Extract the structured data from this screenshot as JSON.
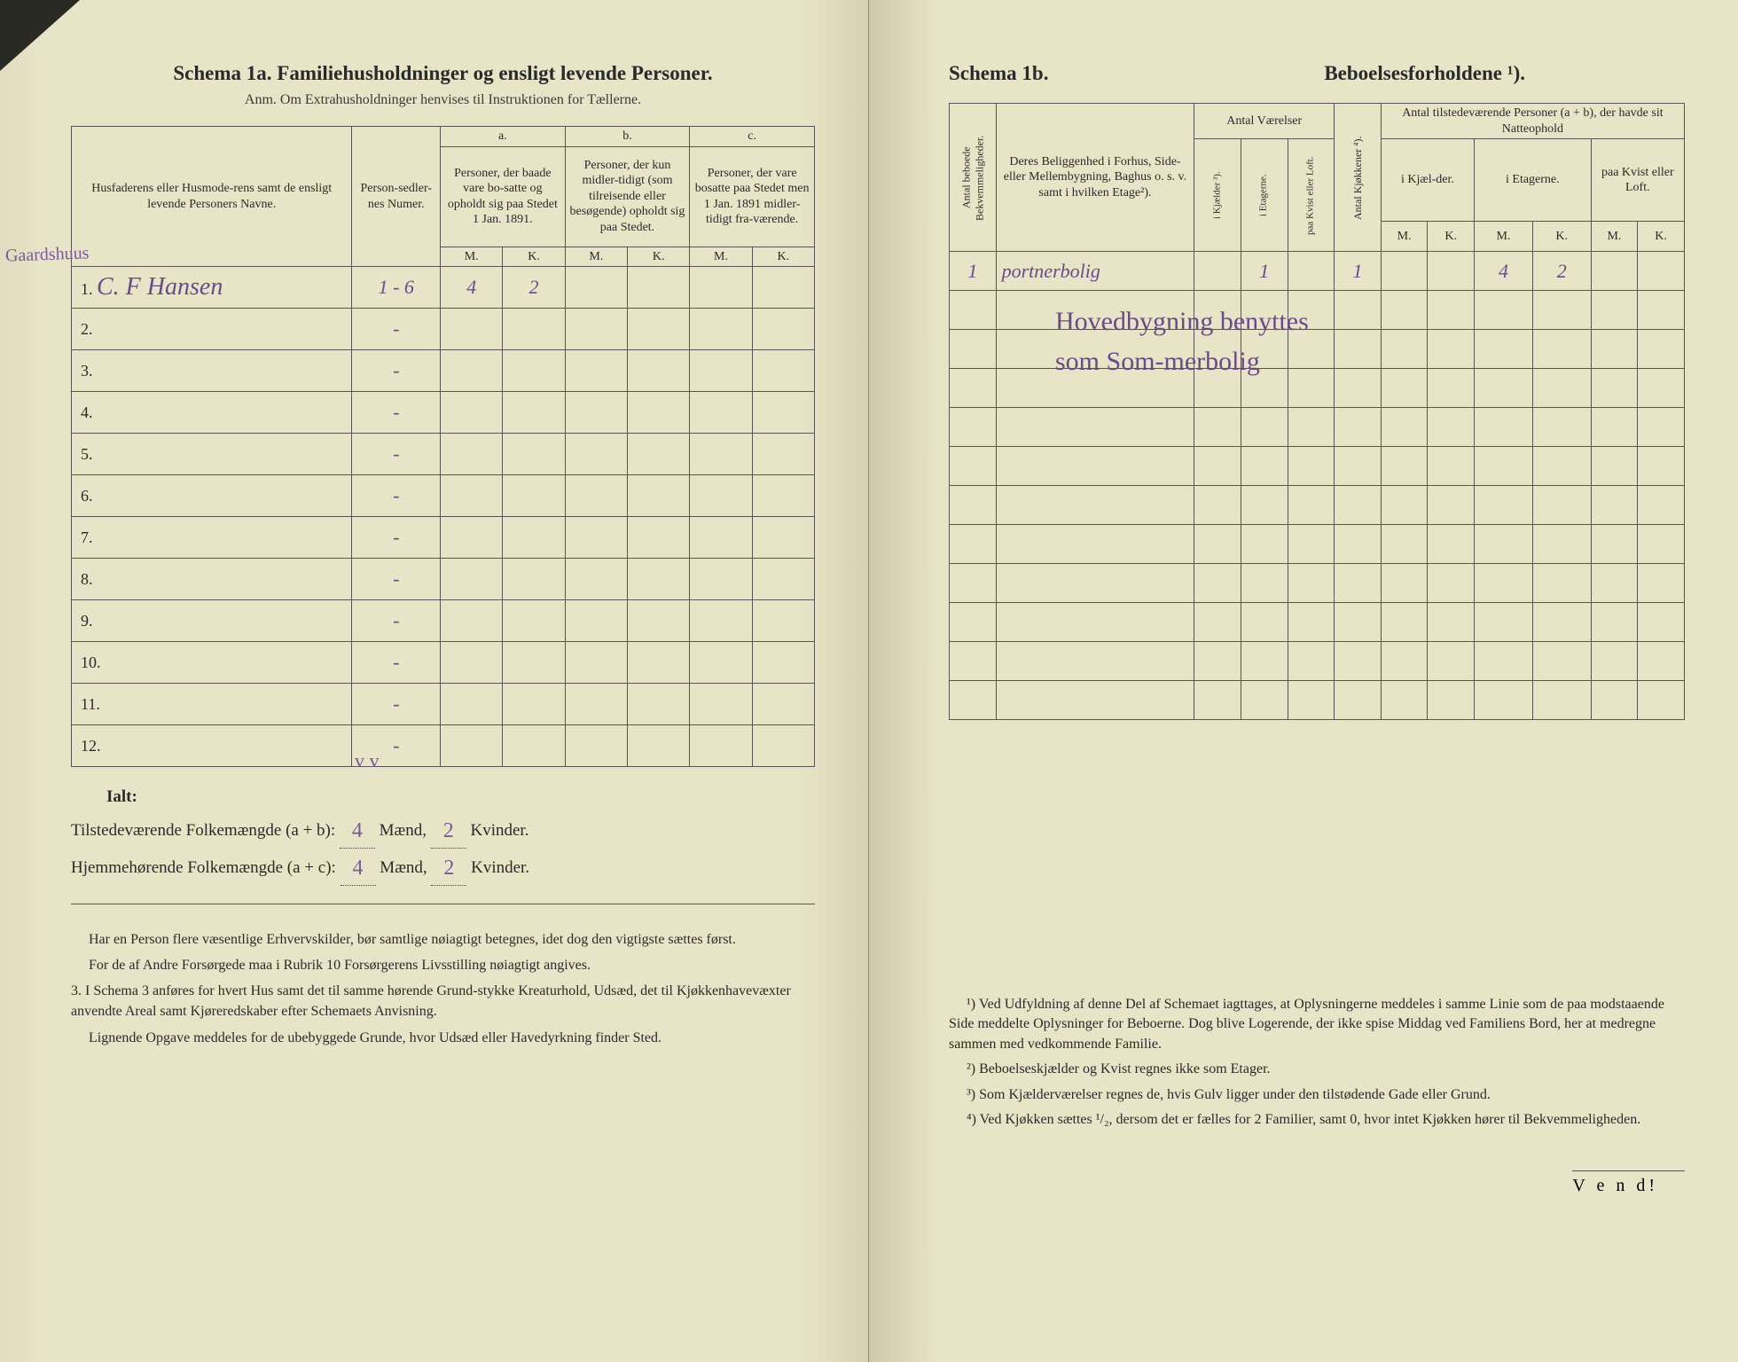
{
  "left": {
    "title": "Schema 1a.   Familiehusholdninger og ensligt levende Personer.",
    "subtitle": "Anm. Om Extrahusholdninger henvises til Instruktionen for Tællerne.",
    "margin_note": "Gaardshuus",
    "headers": {
      "name": "Husfaderens eller Husmode-rens samt de ensligt levende Personers Navne.",
      "numer": "Person-sedler-nes Numer.",
      "a_label": "a.",
      "a_text": "Personer, der baade vare bo-satte og opholdt sig paa Stedet 1 Jan. 1891.",
      "b_label": "b.",
      "b_text": "Personer, der kun midler-tidigt (som tilreisende eller besøgende) opholdt sig paa Stedet.",
      "c_label": "c.",
      "c_text": "Personer, der vare bosatte paa Stedet men 1 Jan. 1891 midler-tidigt fra-værende.",
      "M": "M.",
      "K": "K."
    },
    "rows": [
      {
        "n": "1.",
        "name": "C. F Hansen",
        "numer": "1 - 6",
        "aM": "4",
        "aK": "2",
        "bM": "",
        "bK": "",
        "cM": "",
        "cK": ""
      },
      {
        "n": "2.",
        "name": "",
        "numer": "-",
        "aM": "",
        "aK": "",
        "bM": "",
        "bK": "",
        "cM": "",
        "cK": ""
      },
      {
        "n": "3.",
        "name": "",
        "numer": "-",
        "aM": "",
        "aK": "",
        "bM": "",
        "bK": "",
        "cM": "",
        "cK": ""
      },
      {
        "n": "4.",
        "name": "",
        "numer": "-",
        "aM": "",
        "aK": "",
        "bM": "",
        "bK": "",
        "cM": "",
        "cK": ""
      },
      {
        "n": "5.",
        "name": "",
        "numer": "-",
        "aM": "",
        "aK": "",
        "bM": "",
        "bK": "",
        "cM": "",
        "cK": ""
      },
      {
        "n": "6.",
        "name": "",
        "numer": "-",
        "aM": "",
        "aK": "",
        "bM": "",
        "bK": "",
        "cM": "",
        "cK": ""
      },
      {
        "n": "7.",
        "name": "",
        "numer": "-",
        "aM": "",
        "aK": "",
        "bM": "",
        "bK": "",
        "cM": "",
        "cK": ""
      },
      {
        "n": "8.",
        "name": "",
        "numer": "-",
        "aM": "",
        "aK": "",
        "bM": "",
        "bK": "",
        "cM": "",
        "cK": ""
      },
      {
        "n": "9.",
        "name": "",
        "numer": "-",
        "aM": "",
        "aK": "",
        "bM": "",
        "bK": "",
        "cM": "",
        "cK": ""
      },
      {
        "n": "10.",
        "name": "",
        "numer": "-",
        "aM": "",
        "aK": "",
        "bM": "",
        "bK": "",
        "cM": "",
        "cK": ""
      },
      {
        "n": "11.",
        "name": "",
        "numer": "-",
        "aM": "",
        "aK": "",
        "bM": "",
        "bK": "",
        "cM": "",
        "cK": ""
      },
      {
        "n": "12.",
        "name": "",
        "numer": "-",
        "aM": "",
        "aK": "",
        "bM": "",
        "bK": "",
        "cM": "",
        "cK": ""
      }
    ],
    "ialt": {
      "label": "Ialt:",
      "line1_pre": "Tilstedeværende Folkemængde (a + b): ",
      "line1_m": "4",
      "line1_mid": " Mænd, ",
      "line1_k": "2",
      "line1_suf": " Kvinder.",
      "line2_pre": "Hjemmehørende Folkemængde (a + c): ",
      "line2_m": "4",
      "line2_mid": " Mænd, ",
      "line2_k": "2",
      "line2_suf": " Kvinder."
    },
    "ticks": "v  v",
    "footnotes": [
      "Har en Person flere væsentlige Erhvervskilder, bør samtlige nøiagtigt betegnes, idet dog den vigtigste sættes først.",
      "For de af Andre Forsørgede maa i Rubrik 10 Forsørgerens Livsstilling nøiagtigt angives.",
      "3. I Schema 3 anføres for hvert Hus samt det til samme hørende Grund-stykke Kreaturhold, Udsæd, det til Kjøkkenhavevæxter anvendte Areal samt Kjøreredskaber efter Schemaets Anvisning.",
      "Lignende Opgave meddeles for de ubebyggede Grunde, hvor Udsæd eller Havedyrkning finder Sted."
    ]
  },
  "right": {
    "title_a": "Schema 1b.",
    "title_b": "Beboelsesforholdene ¹).",
    "headers": {
      "col1": "Antal beboede Bekvemmeligheder.",
      "col2": "Deres Beliggenhed i Forhus, Side- eller Mellembygning, Baghus o. s. v. samt i hvilken Etage²).",
      "grpA": "Antal Værelser",
      "a1": "i Kjælder ³).",
      "a2": "i Etagerne.",
      "a3": "paa Kvist eller Loft.",
      "col_kjok": "Antal Kjøkkener ⁴).",
      "grpB": "Antal tilstedeværende Personer (a + b), der havde sit Natteophold",
      "b1": "i Kjæl-der.",
      "b2": "i Etagerne.",
      "b3": "paa Kvist eller Loft.",
      "M": "M.",
      "K": "K."
    },
    "rows": [
      {
        "c1": "1",
        "c2": "portnerbolig",
        "a1": "",
        "a2": "1",
        "a3": "",
        "kj": "1",
        "b1m": "",
        "b1k": "",
        "b2m": "4",
        "b2k": "2",
        "b3m": "",
        "b3k": ""
      },
      {
        "c1": "",
        "c2": "",
        "a1": "",
        "a2": "",
        "a3": "",
        "kj": "",
        "b1m": "",
        "b1k": "",
        "b2m": "",
        "b2k": "",
        "b3m": "",
        "b3k": ""
      },
      {
        "c1": "",
        "c2": "",
        "a1": "",
        "a2": "",
        "a3": "",
        "kj": "",
        "b1m": "",
        "b1k": "",
        "b2m": "",
        "b2k": "",
        "b3m": "",
        "b3k": ""
      },
      {
        "c1": "",
        "c2": "",
        "a1": "",
        "a2": "",
        "a3": "",
        "kj": "",
        "b1m": "",
        "b1k": "",
        "b2m": "",
        "b2k": "",
        "b3m": "",
        "b3k": ""
      },
      {
        "c1": "",
        "c2": "",
        "a1": "",
        "a2": "",
        "a3": "",
        "kj": "",
        "b1m": "",
        "b1k": "",
        "b2m": "",
        "b2k": "",
        "b3m": "",
        "b3k": ""
      },
      {
        "c1": "",
        "c2": "",
        "a1": "",
        "a2": "",
        "a3": "",
        "kj": "",
        "b1m": "",
        "b1k": "",
        "b2m": "",
        "b2k": "",
        "b3m": "",
        "b3k": ""
      },
      {
        "c1": "",
        "c2": "",
        "a1": "",
        "a2": "",
        "a3": "",
        "kj": "",
        "b1m": "",
        "b1k": "",
        "b2m": "",
        "b2k": "",
        "b3m": "",
        "b3k": ""
      },
      {
        "c1": "",
        "c2": "",
        "a1": "",
        "a2": "",
        "a3": "",
        "kj": "",
        "b1m": "",
        "b1k": "",
        "b2m": "",
        "b2k": "",
        "b3m": "",
        "b3k": ""
      },
      {
        "c1": "",
        "c2": "",
        "a1": "",
        "a2": "",
        "a3": "",
        "kj": "",
        "b1m": "",
        "b1k": "",
        "b2m": "",
        "b2k": "",
        "b3m": "",
        "b3k": ""
      },
      {
        "c1": "",
        "c2": "",
        "a1": "",
        "a2": "",
        "a3": "",
        "kj": "",
        "b1m": "",
        "b1k": "",
        "b2m": "",
        "b2k": "",
        "b3m": "",
        "b3k": ""
      },
      {
        "c1": "",
        "c2": "",
        "a1": "",
        "a2": "",
        "a3": "",
        "kj": "",
        "b1m": "",
        "b1k": "",
        "b2m": "",
        "b2k": "",
        "b3m": "",
        "b3k": ""
      },
      {
        "c1": "",
        "c2": "",
        "a1": "",
        "a2": "",
        "a3": "",
        "kj": "",
        "b1m": "",
        "b1k": "",
        "b2m": "",
        "b2k": "",
        "b3m": "",
        "b3k": ""
      }
    ],
    "freehand": "Hovedbygning benyttes som Som-merbolig",
    "footnotes": [
      "¹) Ved Udfyldning af denne Del af Schemaet iagttages, at Oplysningerne meddeles i samme Linie som de paa modstaaende Side meddelte Oplysninger for Beboerne. Dog blive Logerende, der ikke spise Middag ved Familiens Bord, her at medregne sammen med vedkommende Familie.",
      "²) Beboelseskjælder og Kvist regnes ikke som Etager.",
      "³) Som Kjælderværelser regnes de, hvis Gulv ligger under den tilstødende Gade eller Grund.",
      "⁴) Ved Kjøkken sættes ¹/₂, dersom det er fælles for 2 Familier, samt 0, hvor intet Kjøkken hører til Bekvemmeligheden."
    ],
    "vend": "V e n d!"
  },
  "colors": {
    "paper": "#e8e4c8",
    "ink": "#2a2a2a",
    "handwriting": "#6b4a8a",
    "border": "#555555"
  }
}
